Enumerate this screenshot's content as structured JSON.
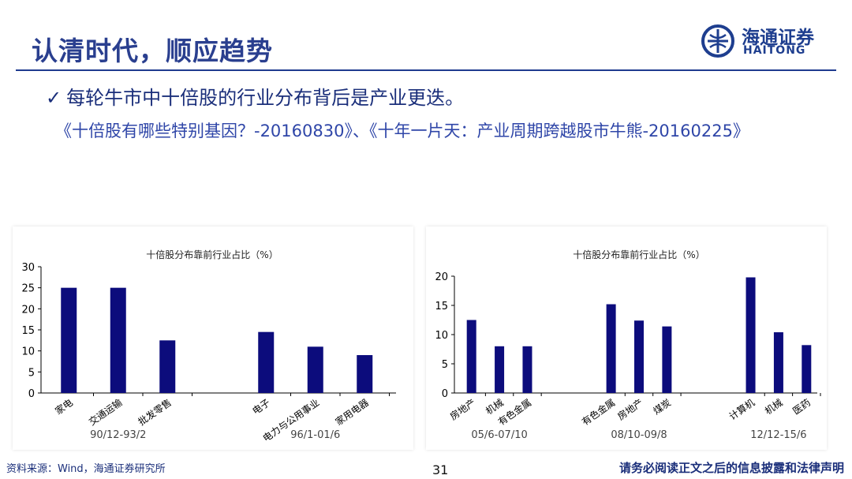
{
  "slide": {
    "title": "认清时代，顺应趋势",
    "bullet": "每轮牛市中十倍股的行业分布背后是产业更迭。",
    "references": "《十倍股有哪些特别基因？-20160830》、《十年一片天：产业周期跨越股市牛熊-20160225》",
    "page_number": "31",
    "source": "资料来源：Wind，海通证券研究所",
    "disclaimer": "请务必阅读正文之后的信息披露和法律声明"
  },
  "logo": {
    "cn": "海通证券",
    "en": "HAITONG"
  },
  "colors": {
    "bar": "#0c0c7c",
    "title": "#2a3f8f",
    "accent": "#1f3b8f"
  },
  "chart_data": [
    {
      "type": "bar",
      "title": "十倍股分布靠前行业占比（%）",
      "ylim": [
        0,
        30
      ],
      "yticks": [
        0,
        5,
        10,
        15,
        20,
        25,
        30
      ],
      "groups": [
        {
          "period": "90/12-93/2",
          "categories": [
            "家电",
            "交通运输",
            "批发零售"
          ],
          "values": [
            25,
            25,
            12.5
          ]
        },
        {
          "period": "96/1-01/6",
          "categories": [
            "电子",
            "电力与公用事业",
            "家用电器"
          ],
          "values": [
            14.5,
            11,
            9
          ]
        }
      ]
    },
    {
      "type": "bar",
      "title": "十倍股分布靠前行业占比（%）",
      "ylim": [
        0,
        20
      ],
      "yticks": [
        0,
        5,
        10,
        15,
        20
      ],
      "groups": [
        {
          "period": "05/6-07/10",
          "categories": [
            "房地产",
            "机械",
            "有色金属"
          ],
          "values": [
            12.5,
            8,
            8
          ]
        },
        {
          "period": "08/10-09/8",
          "categories": [
            "有色金属",
            "房地产",
            "煤炭"
          ],
          "values": [
            15.2,
            12.4,
            11.4
          ]
        },
        {
          "period": "12/12-15/6",
          "categories": [
            "计算机",
            "机械",
            "医药"
          ],
          "values": [
            19.8,
            10.4,
            8.2
          ]
        }
      ]
    }
  ]
}
